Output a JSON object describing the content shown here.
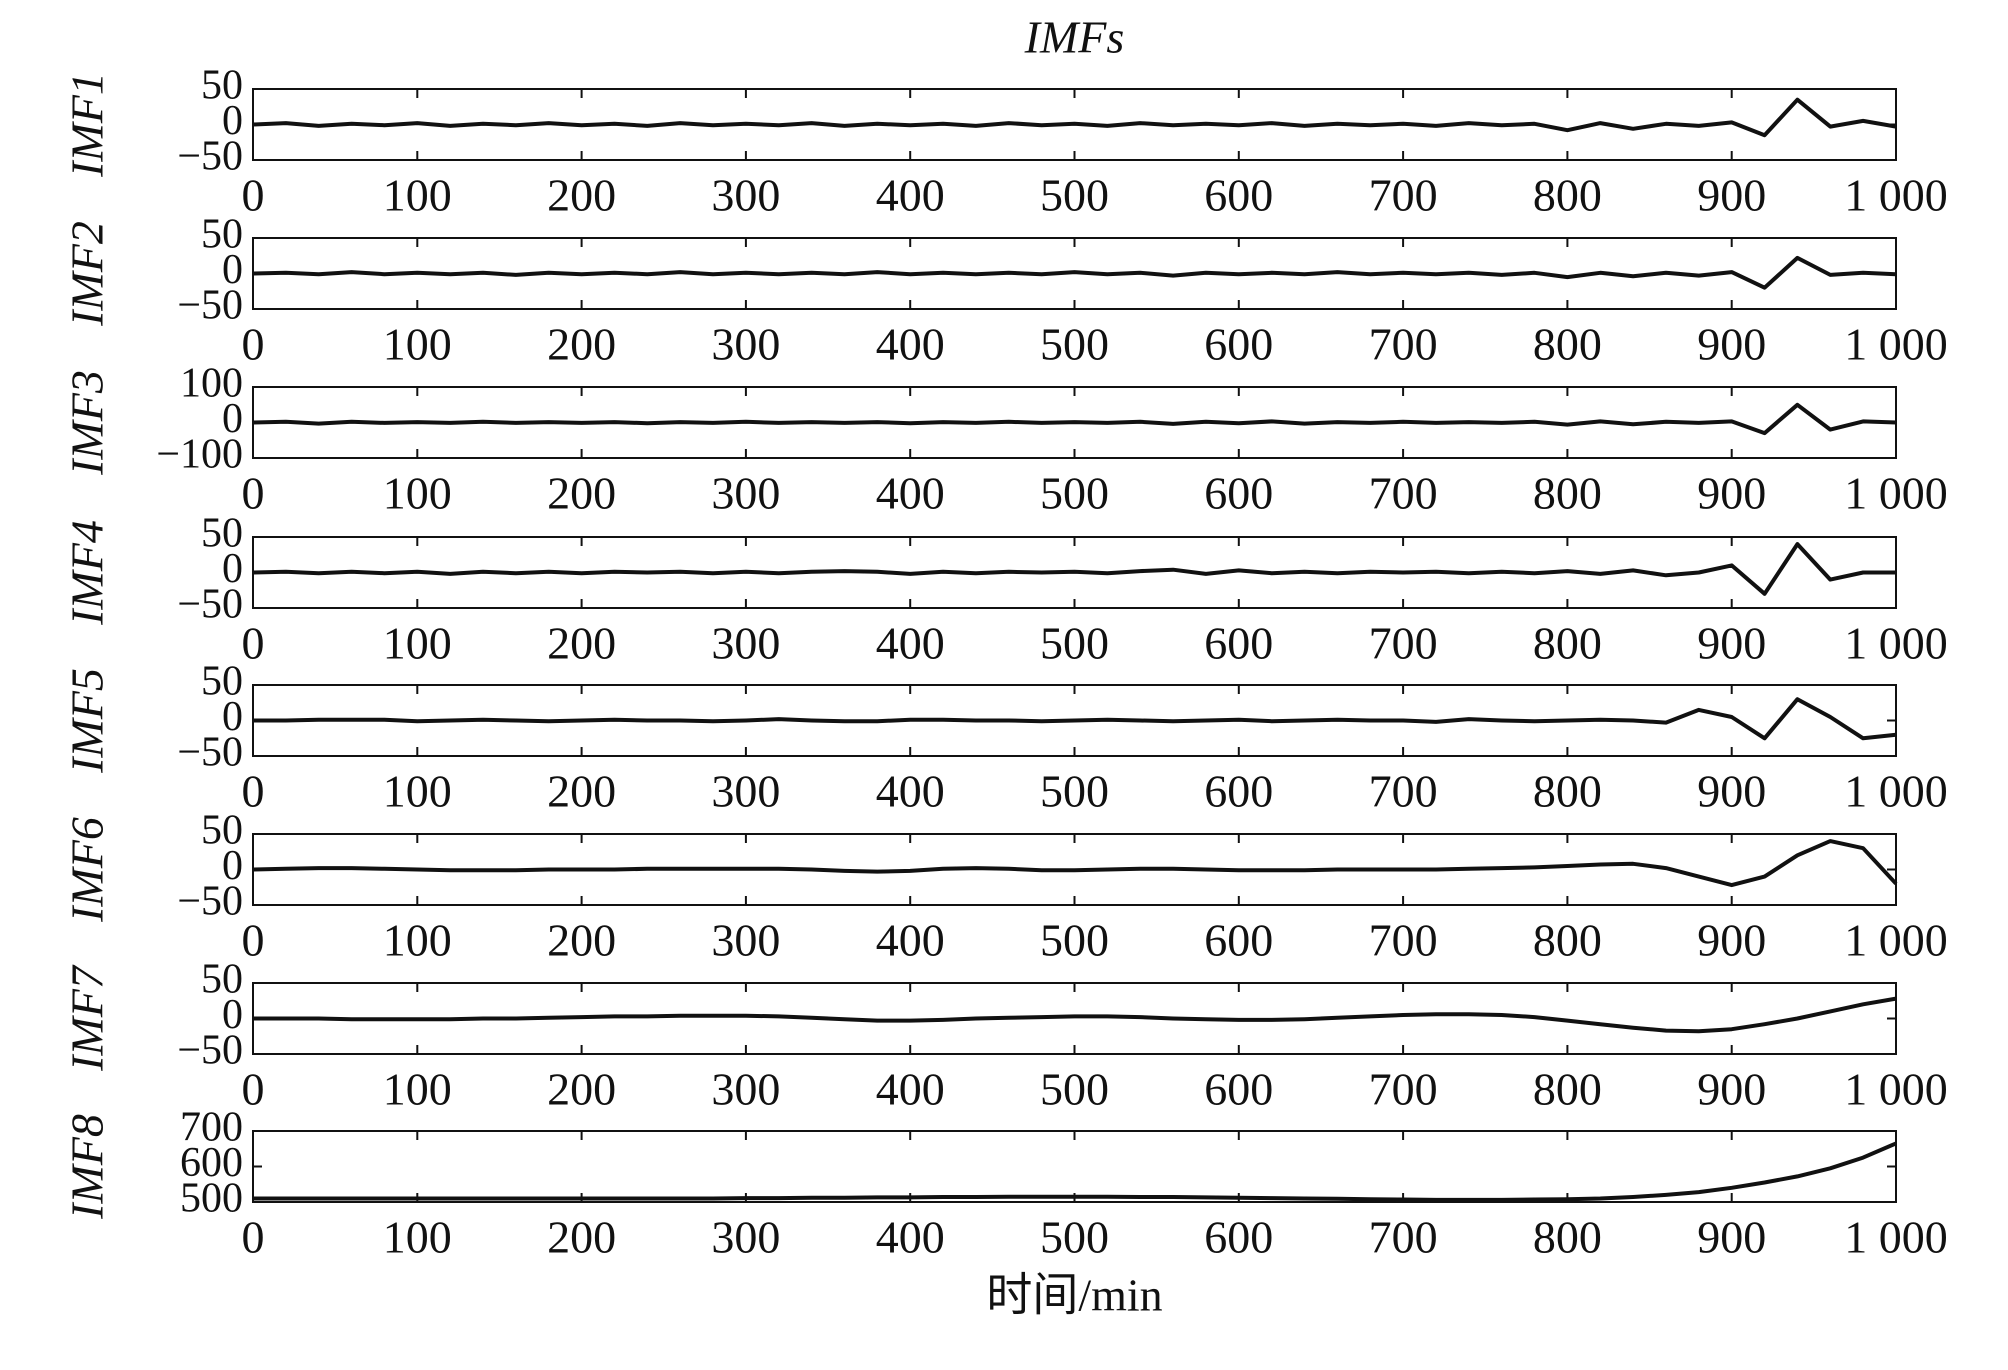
{
  "chart_data": [
    {
      "type": "line",
      "title": "IMFs",
      "ylabel": "IMF1",
      "color": "#111111",
      "x": [
        0,
        20,
        40,
        60,
        80,
        100,
        120,
        140,
        160,
        180,
        200,
        220,
        240,
        260,
        280,
        300,
        320,
        340,
        360,
        380,
        400,
        420,
        440,
        460,
        480,
        500,
        520,
        540,
        560,
        580,
        600,
        620,
        640,
        660,
        680,
        700,
        720,
        740,
        760,
        780,
        800,
        820,
        840,
        860,
        880,
        900,
        920,
        940,
        960,
        980,
        1000
      ],
      "values": [
        0,
        2,
        -2,
        1,
        -1,
        2,
        -2,
        1,
        -1,
        2,
        -1,
        1,
        -2,
        2,
        -1,
        1,
        -1,
        2,
        -2,
        1,
        -1,
        1,
        -2,
        2,
        -1,
        1,
        -2,
        2,
        -1,
        1,
        -1,
        2,
        -2,
        1,
        -1,
        1,
        -2,
        2,
        -1,
        1,
        -8,
        2,
        -6,
        1,
        -2,
        3,
        -15,
        35,
        -3,
        5,
        -3
      ],
      "xlim": [
        0,
        1000
      ],
      "xticks": [
        0,
        100,
        200,
        300,
        400,
        500,
        600,
        700,
        800,
        900,
        {
          "value": 1000,
          "label": "1 000"
        }
      ],
      "ylim": [
        -50,
        50
      ],
      "yticks": [
        {
          "value": -50,
          "label": "−50"
        },
        0,
        50
      ]
    },
    {
      "type": "line",
      "ylabel": "IMF2",
      "color": "#111111",
      "x": [
        0,
        20,
        40,
        60,
        80,
        100,
        120,
        140,
        160,
        180,
        200,
        220,
        240,
        260,
        280,
        300,
        320,
        340,
        360,
        380,
        400,
        420,
        440,
        460,
        480,
        500,
        520,
        540,
        560,
        580,
        600,
        620,
        640,
        660,
        680,
        700,
        720,
        740,
        760,
        780,
        800,
        820,
        840,
        860,
        880,
        900,
        920,
        940,
        960,
        980,
        1000
      ],
      "values": [
        0,
        1,
        -1,
        2,
        -1,
        1,
        -1,
        1,
        -2,
        1,
        -1,
        1,
        -1,
        2,
        -1,
        1,
        -1,
        1,
        -1,
        2,
        -1,
        1,
        -1,
        1,
        -1,
        2,
        -1,
        1,
        -3,
        1,
        -1,
        1,
        -1,
        2,
        -1,
        1,
        -1,
        1,
        -2,
        1,
        -5,
        1,
        -4,
        1,
        -3,
        2,
        -20,
        22,
        -2,
        1,
        -1
      ],
      "xlim": [
        0,
        1000
      ],
      "xticks": [
        0,
        100,
        200,
        300,
        400,
        500,
        600,
        700,
        800,
        900,
        {
          "value": 1000,
          "label": "1 000"
        }
      ],
      "ylim": [
        -50,
        50
      ],
      "yticks": [
        {
          "value": -50,
          "label": "−50"
        },
        0,
        50
      ]
    },
    {
      "type": "line",
      "ylabel": "IMF3",
      "color": "#111111",
      "x": [
        0,
        20,
        40,
        60,
        80,
        100,
        120,
        140,
        160,
        180,
        200,
        220,
        240,
        260,
        280,
        300,
        320,
        340,
        360,
        380,
        400,
        420,
        440,
        460,
        480,
        500,
        520,
        540,
        560,
        580,
        600,
        620,
        640,
        660,
        680,
        700,
        720,
        740,
        760,
        780,
        800,
        820,
        840,
        860,
        880,
        900,
        920,
        940,
        960,
        980,
        1000
      ],
      "values": [
        0,
        2,
        -3,
        2,
        -1,
        1,
        -1,
        2,
        -1,
        1,
        -1,
        1,
        -2,
        1,
        -1,
        2,
        -1,
        1,
        -1,
        1,
        -2,
        1,
        -1,
        2,
        -1,
        1,
        -1,
        2,
        -4,
        2,
        -2,
        3,
        -3,
        1,
        -1,
        2,
        -1,
        1,
        -1,
        2,
        -6,
        3,
        -5,
        2,
        -1,
        3,
        -30,
        50,
        -20,
        3,
        0
      ],
      "xlim": [
        0,
        1000
      ],
      "xticks": [
        0,
        100,
        200,
        300,
        400,
        500,
        600,
        700,
        800,
        900,
        {
          "value": 1000,
          "label": "1 000"
        }
      ],
      "ylim": [
        -100,
        100
      ],
      "yticks": [
        {
          "value": -100,
          "label": "−100"
        },
        0,
        100
      ]
    },
    {
      "type": "line",
      "ylabel": "IMF4",
      "color": "#111111",
      "x": [
        0,
        20,
        40,
        60,
        80,
        100,
        120,
        140,
        160,
        180,
        200,
        220,
        240,
        260,
        280,
        300,
        320,
        340,
        360,
        380,
        400,
        420,
        440,
        460,
        480,
        500,
        520,
        540,
        560,
        580,
        600,
        620,
        640,
        660,
        680,
        700,
        720,
        740,
        760,
        780,
        800,
        820,
        840,
        860,
        880,
        900,
        920,
        940,
        960,
        980,
        1000
      ],
      "values": [
        0,
        1,
        -1,
        1,
        -1,
        1,
        -2,
        1,
        -1,
        1,
        -1,
        1,
        0,
        1,
        -1,
        1,
        -1,
        1,
        2,
        1,
        -2,
        1,
        -1,
        1,
        0,
        1,
        -1,
        2,
        4,
        -2,
        3,
        -1,
        1,
        -1,
        1,
        0,
        1,
        -1,
        1,
        -1,
        2,
        -2,
        3,
        -4,
        0,
        10,
        -30,
        40,
        -10,
        0,
        0
      ],
      "xlim": [
        0,
        1000
      ],
      "xticks": [
        0,
        100,
        200,
        300,
        400,
        500,
        600,
        700,
        800,
        900,
        {
          "value": 1000,
          "label": "1 000"
        }
      ],
      "ylim": [
        -50,
        50
      ],
      "yticks": [
        {
          "value": -50,
          "label": "−50"
        },
        0,
        50
      ]
    },
    {
      "type": "line",
      "ylabel": "IMF5",
      "color": "#111111",
      "x": [
        0,
        20,
        40,
        60,
        80,
        100,
        120,
        140,
        160,
        180,
        200,
        220,
        240,
        260,
        280,
        300,
        320,
        340,
        360,
        380,
        400,
        420,
        440,
        460,
        480,
        500,
        520,
        540,
        560,
        580,
        600,
        620,
        640,
        660,
        680,
        700,
        720,
        740,
        760,
        780,
        800,
        820,
        840,
        860,
        880,
        900,
        920,
        940,
        960,
        980,
        1000
      ],
      "values": [
        0,
        0,
        1,
        1,
        1,
        -1,
        0,
        1,
        0,
        -1,
        0,
        1,
        0,
        0,
        -1,
        0,
        2,
        0,
        -1,
        -1,
        1,
        1,
        0,
        0,
        -1,
        0,
        1,
        0,
        -1,
        0,
        1,
        -1,
        0,
        1,
        0,
        0,
        -2,
        2,
        0,
        -1,
        0,
        1,
        0,
        -3,
        15,
        5,
        -25,
        30,
        5,
        -25,
        -20
      ],
      "xlim": [
        0,
        1000
      ],
      "xticks": [
        0,
        100,
        200,
        300,
        400,
        500,
        600,
        700,
        800,
        900,
        {
          "value": 1000,
          "label": "1 000"
        }
      ],
      "ylim": [
        -50,
        50
      ],
      "yticks": [
        {
          "value": -50,
          "label": "−50"
        },
        0,
        50
      ]
    },
    {
      "type": "line",
      "ylabel": "IMF6",
      "color": "#111111",
      "x": [
        0,
        20,
        40,
        60,
        80,
        100,
        120,
        140,
        160,
        180,
        200,
        220,
        240,
        260,
        280,
        300,
        320,
        340,
        360,
        380,
        400,
        420,
        440,
        460,
        480,
        500,
        520,
        540,
        560,
        580,
        600,
        620,
        640,
        660,
        680,
        700,
        720,
        740,
        760,
        780,
        800,
        820,
        840,
        860,
        880,
        900,
        920,
        940,
        960,
        980,
        1000
      ],
      "values": [
        0,
        1,
        2,
        2,
        1,
        0,
        -1,
        -1,
        -1,
        0,
        0,
        0,
        1,
        1,
        1,
        1,
        1,
        0,
        -2,
        -3,
        -2,
        1,
        2,
        1,
        -1,
        -1,
        0,
        1,
        1,
        0,
        -1,
        -1,
        -1,
        0,
        0,
        0,
        0,
        1,
        2,
        3,
        5,
        7,
        8,
        2,
        -10,
        -22,
        -10,
        20,
        40,
        30,
        -20
      ],
      "xlim": [
        0,
        1000
      ],
      "xticks": [
        0,
        100,
        200,
        300,
        400,
        500,
        600,
        700,
        800,
        900,
        {
          "value": 1000,
          "label": "1 000"
        }
      ],
      "ylim": [
        -50,
        50
      ],
      "yticks": [
        {
          "value": -50,
          "label": "−50"
        },
        0,
        50
      ]
    },
    {
      "type": "line",
      "ylabel": "IMF7",
      "color": "#111111",
      "x": [
        0,
        20,
        40,
        60,
        80,
        100,
        120,
        140,
        160,
        180,
        200,
        220,
        240,
        260,
        280,
        300,
        320,
        340,
        360,
        380,
        400,
        420,
        440,
        460,
        480,
        500,
        520,
        540,
        560,
        580,
        600,
        620,
        640,
        660,
        680,
        700,
        720,
        740,
        760,
        780,
        800,
        820,
        840,
        860,
        880,
        900,
        920,
        940,
        960,
        980,
        1000
      ],
      "values": [
        0,
        0,
        0,
        -1,
        -1,
        -1,
        -1,
        0,
        0,
        1,
        2,
        3,
        3,
        4,
        4,
        4,
        3,
        1,
        -1,
        -3,
        -3,
        -2,
        0,
        1,
        2,
        3,
        3,
        2,
        0,
        -1,
        -2,
        -2,
        -1,
        1,
        3,
        5,
        6,
        6,
        5,
        2,
        -3,
        -8,
        -13,
        -17,
        -18,
        -15,
        -8,
        0,
        10,
        20,
        28
      ],
      "xlim": [
        0,
        1000
      ],
      "xticks": [
        0,
        100,
        200,
        300,
        400,
        500,
        600,
        700,
        800,
        900,
        {
          "value": 1000,
          "label": "1 000"
        }
      ],
      "ylim": [
        -50,
        50
      ],
      "yticks": [
        {
          "value": -50,
          "label": "−50"
        },
        0,
        50
      ]
    },
    {
      "type": "line",
      "ylabel": "IMF8",
      "xlabel": "时间/min",
      "color": "#111111",
      "x": [
        0,
        20,
        40,
        60,
        80,
        100,
        120,
        140,
        160,
        180,
        200,
        220,
        240,
        260,
        280,
        300,
        320,
        340,
        360,
        380,
        400,
        420,
        440,
        460,
        480,
        500,
        520,
        540,
        560,
        580,
        600,
        620,
        640,
        660,
        680,
        700,
        720,
        740,
        760,
        780,
        800,
        820,
        840,
        860,
        880,
        900,
        920,
        940,
        960,
        980,
        1000
      ],
      "values": [
        510,
        510,
        510,
        510,
        510,
        510,
        510,
        510,
        510,
        510,
        510,
        510,
        510,
        510,
        510,
        511,
        511,
        512,
        512,
        513,
        513,
        514,
        514,
        515,
        515,
        515,
        515,
        514,
        514,
        513,
        512,
        511,
        510,
        509,
        508,
        507,
        506,
        506,
        506,
        507,
        508,
        510,
        514,
        520,
        528,
        540,
        555,
        572,
        595,
        625,
        665
      ],
      "xlim": [
        0,
        1000
      ],
      "xticks": [
        0,
        100,
        200,
        300,
        400,
        500,
        600,
        700,
        800,
        900,
        {
          "value": 1000,
          "label": "1 000"
        }
      ],
      "ylim": [
        500,
        700
      ],
      "yticks": [
        500,
        600,
        700
      ]
    }
  ]
}
